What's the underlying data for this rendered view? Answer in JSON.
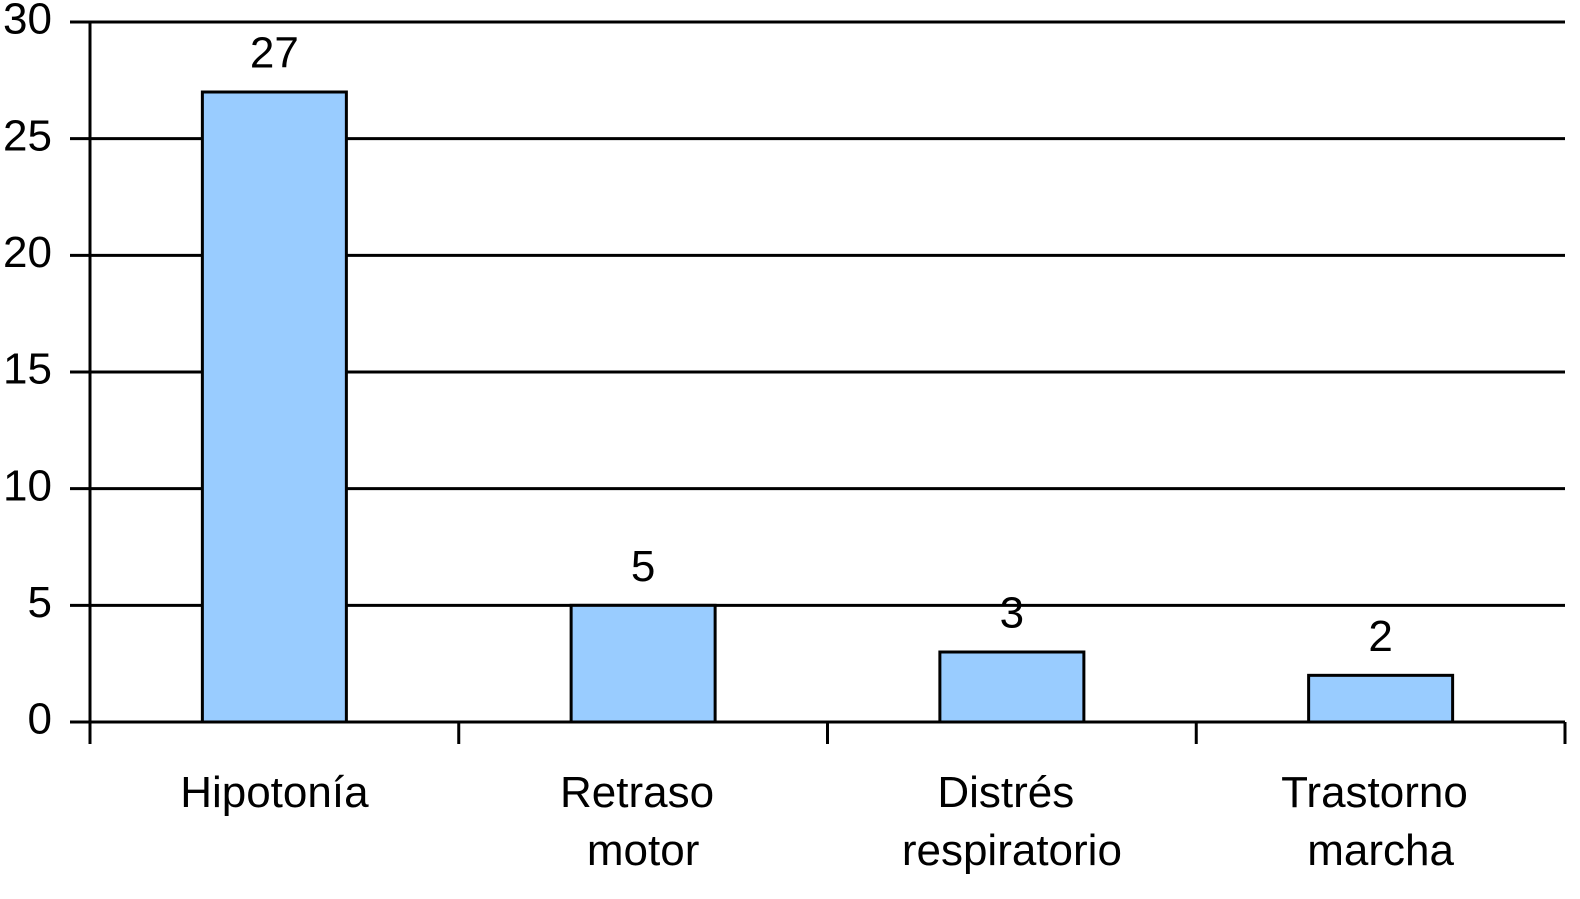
{
  "chart_data": {
    "type": "bar",
    "categories": [
      "Hipotonía",
      "Retraso motor",
      "Distrés respiratorio",
      "Trastorno marcha"
    ],
    "values": [
      27,
      5,
      3,
      2
    ],
    "color": "#99ccff",
    "ylim": [
      0,
      30
    ],
    "yticks": [
      0,
      5,
      10,
      15,
      20,
      25,
      30
    ],
    "grid": true
  }
}
